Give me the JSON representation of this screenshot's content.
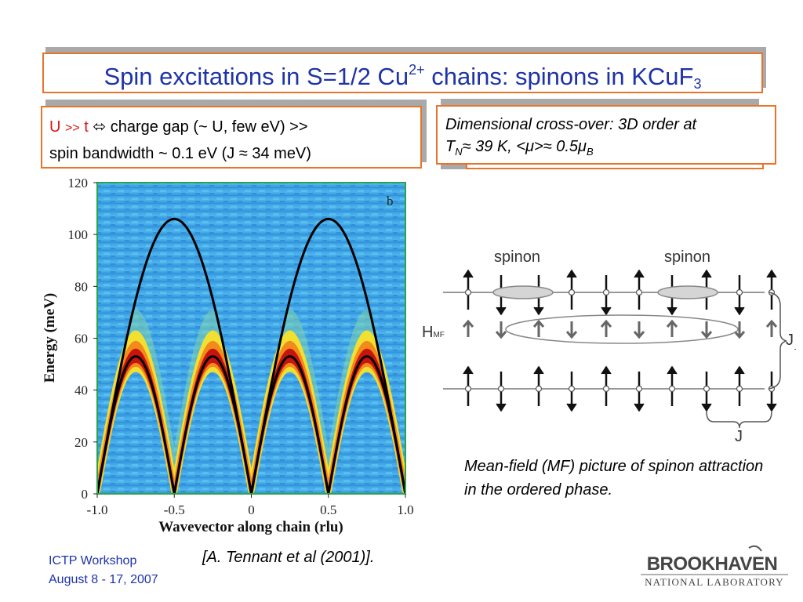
{
  "slide": {
    "title_prefix": "Spin excitations in S=1/2 Cu",
    "title_sup": "2+",
    "title_mid": " chains: spinons in KCuF",
    "title_sub": "3",
    "left_box": {
      "u": "U",
      "gg": ">>",
      "t": "t",
      "arrow": "⬄",
      "line1_rest": " charge gap (~ U, few eV) >>",
      "line2": "spin bandwidth ~ 0.1 eV (J ≈ 34 meV)"
    },
    "right_box": {
      "line1": "Dimensional cross-over: 3D order at",
      "line2_t": "T",
      "line2_n": "N",
      "line2_rest": "≈ 39 K, <μ>≈ 0.5μ",
      "line2_b": "B"
    },
    "mf_caption": "Mean-field (MF) picture of spinon attraction in the ordered phase.",
    "citation": "[A. Tennant et al (2001)].",
    "footer_line1": "ICTP Workshop",
    "footer_line2": "August 8 - 17, 2007",
    "logo_line1": "BROOKHAVEN",
    "logo_line2": "NATIONAL LABORATORY"
  },
  "diagram": {
    "spinon_label_1": "spinon",
    "spinon_label_2": "spinon",
    "hmf_label": "H",
    "hmf_sub": "MF",
    "j_perp_label": "J",
    "j_perp_sub": "⊥",
    "j_label": "J",
    "top_chain_spins": [
      "up",
      "down",
      "down",
      "up",
      "down",
      "up",
      "down",
      "up",
      "down",
      "up"
    ],
    "middle_chain_spins": [
      "up",
      "down",
      "up",
      "down",
      "up",
      "down",
      "up",
      "down",
      "down",
      "up"
    ],
    "bottom_chain_spins": [
      "up",
      "down",
      "up",
      "down",
      "up",
      "down",
      "up",
      "down",
      "up",
      "down"
    ]
  },
  "chart_data": {
    "type": "heatmap",
    "panel_label": "b",
    "xlabel": "Wavevector along chain (rlu)",
    "ylabel": "Energy (meV)",
    "xlim": [
      -1.0,
      1.0
    ],
    "ylim": [
      0,
      120
    ],
    "x_ticks": [
      "-1.0",
      "-0.5",
      "0",
      "0.5",
      "1.0"
    ],
    "y_ticks": [
      "0",
      "20",
      "40",
      "60",
      "80",
      "100",
      "120"
    ],
    "x_tick_values": [
      -1.0,
      -0.5,
      0,
      0.5,
      1.0
    ],
    "y_tick_values": [
      0,
      20,
      40,
      60,
      80,
      100,
      120
    ],
    "curves": [
      {
        "name": "upper continuum boundary",
        "formula": "pi*J*|sin(pi*q/2)|",
        "peak_meV": 106
      },
      {
        "name": "lower continuum boundary (des Cloizeaux-Pearson)",
        "formula": "(pi/2)*J*|sin(pi*q)|",
        "peak_meV": 53
      }
    ],
    "intensity_note": "strong scattering (red) near lower boundary, peak around 60 meV at q=±0.25, ±0.75"
  }
}
